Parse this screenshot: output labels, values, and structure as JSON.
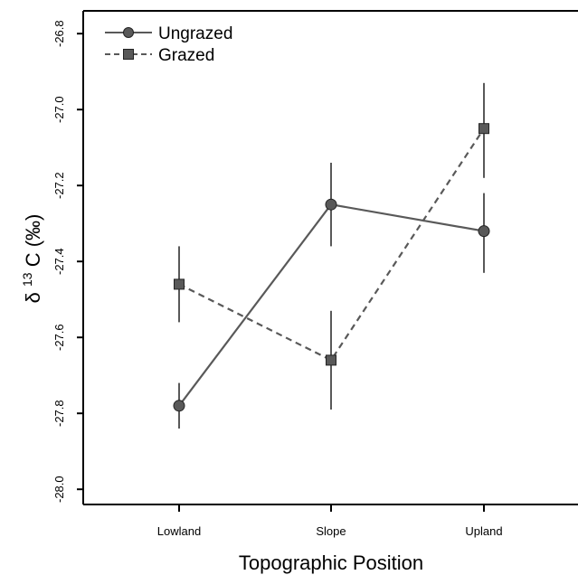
{
  "chart_data": {
    "type": "line",
    "categories": [
      "Lowland",
      "Slope",
      "Upland"
    ],
    "xlabel": "Topographic Position",
    "ylabel": {
      "delta": "δ",
      "superscript": "13",
      "main": "C (‰)"
    },
    "ylim": [
      -28.04,
      -26.74
    ],
    "yticks": [
      -28.0,
      -27.8,
      -27.6,
      -27.4,
      -27.2,
      -27.0,
      -26.8
    ],
    "ytick_labels": [
      "-28.0",
      "-27.8",
      "-27.6",
      "-27.4",
      "-27.2",
      "-27.0",
      "-26.8"
    ],
    "grid": false,
    "legend_position": "top-left",
    "series": [
      {
        "name": "Ungrazed",
        "marker": "circle",
        "line_style": "solid",
        "values": [
          -27.78,
          -27.25,
          -27.32
        ],
        "error_low": [
          -27.84,
          -27.36,
          -27.43
        ],
        "error_high": [
          -27.72,
          -27.14,
          -27.22
        ]
      },
      {
        "name": "Grazed",
        "marker": "square",
        "line_style": "dashed",
        "values": [
          -27.46,
          -27.66,
          -27.05
        ],
        "error_low": [
          -27.56,
          -27.79,
          -27.18
        ],
        "error_high": [
          -27.36,
          -27.53,
          -26.93
        ]
      }
    ],
    "colors": {
      "line": "#595959",
      "marker_fill": "#595959",
      "marker_stroke": "#222222",
      "axis": "#000000"
    }
  }
}
